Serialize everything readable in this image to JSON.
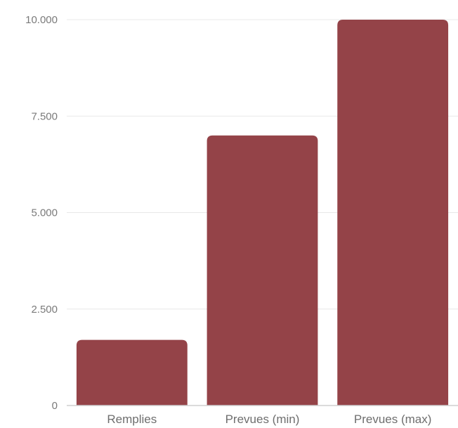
{
  "chart_data": {
    "type": "bar",
    "title": "",
    "xlabel": "",
    "ylabel": "",
    "categories": [
      "Remplies",
      "Prevues (min)",
      "Prevues (max)"
    ],
    "values": [
      1700,
      7000,
      10000
    ],
    "ylim": [
      0,
      10000
    ],
    "yticks": [
      0,
      2500,
      5000,
      7500,
      10000
    ],
    "ytick_labels": [
      "0",
      "2.500",
      "5.000",
      "7.500",
      "10.000"
    ],
    "grid": true,
    "legend": "none",
    "bar_color": "#944348"
  }
}
